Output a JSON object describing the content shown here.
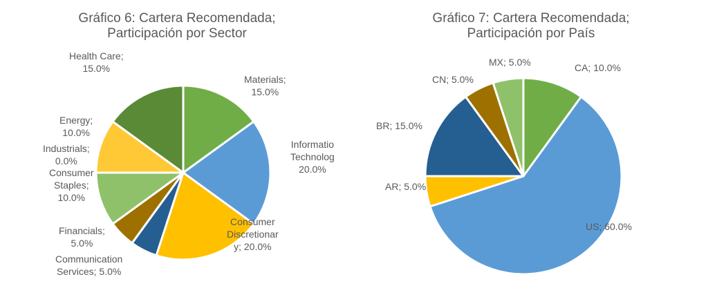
{
  "chart_data": [
    {
      "type": "pie",
      "title_line1": "Gráfico 6: Cartera Recomendada;",
      "title_line2": "Participación por Sector",
      "slices": [
        {
          "name": "Materials",
          "value": 15.0,
          "color": "#70AD47",
          "label_lines": [
            "Materials;",
            "15.0%"
          ]
        },
        {
          "name": "Information Technology",
          "value": 20.0,
          "color": "#5B9BD5",
          "label_lines": [
            "Informatio",
            "Technolog",
            "20.0%"
          ]
        },
        {
          "name": "Consumer Discretionary",
          "value": 20.0,
          "color": "#FFC000",
          "label_lines": [
            "Consumer",
            "Discretionar",
            "y; 20.0%"
          ]
        },
        {
          "name": "Communication Services",
          "value": 5.0,
          "color": "#255E91",
          "label_lines": [
            "Communication",
            "Services; 5.0%"
          ]
        },
        {
          "name": "Financials",
          "value": 5.0,
          "color": "#9E7000",
          "label_lines": [
            "Financials;",
            "5.0%"
          ]
        },
        {
          "name": "Consumer Staples",
          "value": 10.0,
          "color": "#8FC16A",
          "label_lines": [
            "Consumer",
            "Staples;",
            "10.0%"
          ]
        },
        {
          "name": "Industrials",
          "value": 0.0,
          "color": "#C0C0C0",
          "label_lines": [
            "Industrials;",
            "0.0%"
          ]
        },
        {
          "name": "Energy",
          "value": 10.0,
          "color": "#FFC935",
          "label_lines": [
            "Energy;",
            "10.0%"
          ]
        },
        {
          "name": "Health Care",
          "value": 15.0,
          "color": "#5A8A36",
          "label_lines": [
            "Health Care;",
            "15.0%"
          ]
        }
      ]
    },
    {
      "type": "pie",
      "title_line1": "Gráfico 7: Cartera Recomendada;",
      "title_line2": "Participación por País",
      "slices": [
        {
          "name": "CA",
          "value": 10.0,
          "color": "#70AD47",
          "label_lines": [
            "CA; 10.0%"
          ]
        },
        {
          "name": "US",
          "value": 60.0,
          "color": "#5B9BD5",
          "label_lines": [
            "US; 60.0%"
          ]
        },
        {
          "name": "AR",
          "value": 5.0,
          "color": "#FFC000",
          "label_lines": [
            "AR; 5.0%"
          ]
        },
        {
          "name": "BR",
          "value": 15.0,
          "color": "#255E91",
          "label_lines": [
            "BR; 15.0%"
          ]
        },
        {
          "name": "CN",
          "value": 5.0,
          "color": "#9E7000",
          "label_lines": [
            "CN; 5.0%"
          ]
        },
        {
          "name": "MX",
          "value": 5.0,
          "color": "#8FC16A",
          "label_lines": [
            "MX; 5.0%"
          ]
        }
      ]
    }
  ]
}
